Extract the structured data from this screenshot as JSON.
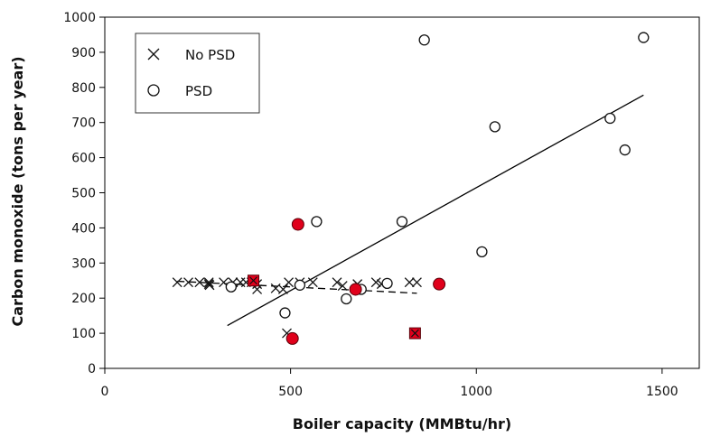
{
  "chart_data": {
    "type": "scatter",
    "xlabel": "Boiler capacity (MMBtu/hr)",
    "ylabel": "Carbon monoxide (tons per year)",
    "xlim": [
      0,
      1600
    ],
    "ylim": [
      0,
      1000
    ],
    "xticks": [
      0,
      500,
      1000,
      1500
    ],
    "yticks": [
      0,
      100,
      200,
      300,
      400,
      500,
      600,
      700,
      800,
      900,
      1000
    ],
    "grid": false,
    "legend_position": "top-left",
    "series": [
      {
        "name": "No PSD",
        "marker": "x",
        "points": [
          [
            195,
            245
          ],
          [
            225,
            245
          ],
          [
            255,
            245
          ],
          [
            280,
            245
          ],
          [
            280,
            240
          ],
          [
            282,
            237
          ],
          [
            320,
            245
          ],
          [
            345,
            245
          ],
          [
            365,
            245
          ],
          [
            380,
            245
          ],
          [
            395,
            245
          ],
          [
            410,
            240
          ],
          [
            410,
            225
          ],
          [
            460,
            228
          ],
          [
            480,
            225
          ],
          [
            490,
            100
          ],
          [
            495,
            245
          ],
          [
            525,
            245
          ],
          [
            560,
            245
          ],
          [
            625,
            245
          ],
          [
            640,
            235
          ],
          [
            680,
            240
          ],
          [
            730,
            245
          ],
          [
            745,
            240
          ],
          [
            820,
            245
          ],
          [
            840,
            245
          ]
        ]
      },
      {
        "name": "PSD",
        "marker": "o",
        "points": [
          [
            340,
            232
          ],
          [
            485,
            158
          ],
          [
            525,
            237
          ],
          [
            570,
            418
          ],
          [
            650,
            198
          ],
          [
            690,
            225
          ],
          [
            760,
            242
          ],
          [
            800,
            418
          ],
          [
            860,
            935
          ],
          [
            1015,
            332
          ],
          [
            1050,
            688
          ],
          [
            1360,
            712
          ],
          [
            1400,
            622
          ],
          [
            1450,
            942
          ]
        ]
      }
    ],
    "highlighted_points": [
      {
        "marker": "square",
        "color": "#e0001b",
        "x": 400,
        "y": 250
      },
      {
        "marker": "square",
        "color": "#e0001b",
        "x": 835,
        "y": 100
      },
      {
        "marker": "circle",
        "color": "#e0001b",
        "x": 520,
        "y": 410
      },
      {
        "marker": "circle",
        "color": "#e0001b",
        "x": 505,
        "y": 85
      },
      {
        "marker": "circle",
        "color": "#e0001b",
        "x": 675,
        "y": 225
      },
      {
        "marker": "circle",
        "color": "#e0001b",
        "x": 900,
        "y": 240
      }
    ],
    "trendlines": [
      {
        "series": "PSD",
        "style": "solid",
        "from": [
          330,
          122
        ],
        "to": [
          1450,
          778
        ]
      },
      {
        "series": "No PSD",
        "style": "dashed",
        "from": [
          195,
          248
        ],
        "to": [
          840,
          214
        ]
      }
    ]
  },
  "colors": {
    "marker_stroke": "#111111",
    "highlight_fill": "#e0001b",
    "axis": "#000000",
    "background": "#ffffff"
  }
}
